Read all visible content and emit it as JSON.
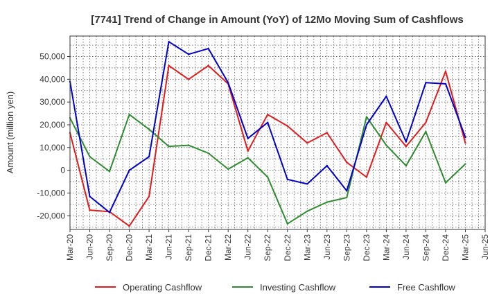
{
  "chart_data": {
    "type": "line",
    "title": "[7741]  Trend of Change in Amount (YoY) of 12Mo Moving Sum of Cashflows",
    "xlabel": "",
    "ylabel": "Amount (million yen)",
    "ylim": [
      -26000,
      59000
    ],
    "yticks": [
      -20000,
      -10000,
      0,
      10000,
      20000,
      30000,
      40000,
      50000
    ],
    "ytick_labels": [
      "-20,000",
      "-10,000",
      "0",
      "10,000",
      "20,000",
      "30,000",
      "40,000",
      "50,000"
    ],
    "grid": true,
    "legend_position": "bottom",
    "categories": [
      "Mar-20",
      "Jun-20",
      "Sep-20",
      "Dec-20",
      "Mar-21",
      "Jun-21",
      "Sep-21",
      "Dec-21",
      "Mar-22",
      "Jun-22",
      "Sep-22",
      "Dec-22",
      "Mar-23",
      "Jun-23",
      "Sep-23",
      "Dec-23",
      "Mar-24",
      "Jun-24",
      "Sep-24",
      "Dec-24",
      "Mar-25",
      "Jun-25"
    ],
    "series": [
      {
        "name": "Operating Cashflow",
        "color": "#e31a1c",
        "values": [
          16500,
          -17500,
          -18200,
          -24500,
          -11500,
          46000,
          40000,
          46000,
          38000,
          8500,
          24500,
          19500,
          12000,
          16500,
          3500,
          -3000,
          21000,
          10500,
          21000,
          43500,
          12000,
          null
        ]
      },
      {
        "name": "Investing Cashflow",
        "color": "#2e8b2e",
        "values": [
          23000,
          6000,
          -500,
          24500,
          18000,
          10500,
          11000,
          7500,
          500,
          5500,
          -3000,
          -23500,
          -18000,
          -14000,
          -12000,
          23500,
          11000,
          2000,
          17000,
          -5500,
          2800,
          null
        ]
      },
      {
        "name": "Free Cashflow",
        "color": "#0000cc",
        "values": [
          39000,
          -11500,
          -18500,
          0,
          6000,
          56500,
          51000,
          53500,
          38500,
          14000,
          21000,
          -4000,
          -6000,
          2000,
          -9000,
          20000,
          32500,
          12500,
          38500,
          38000,
          14500,
          null
        ]
      }
    ]
  }
}
